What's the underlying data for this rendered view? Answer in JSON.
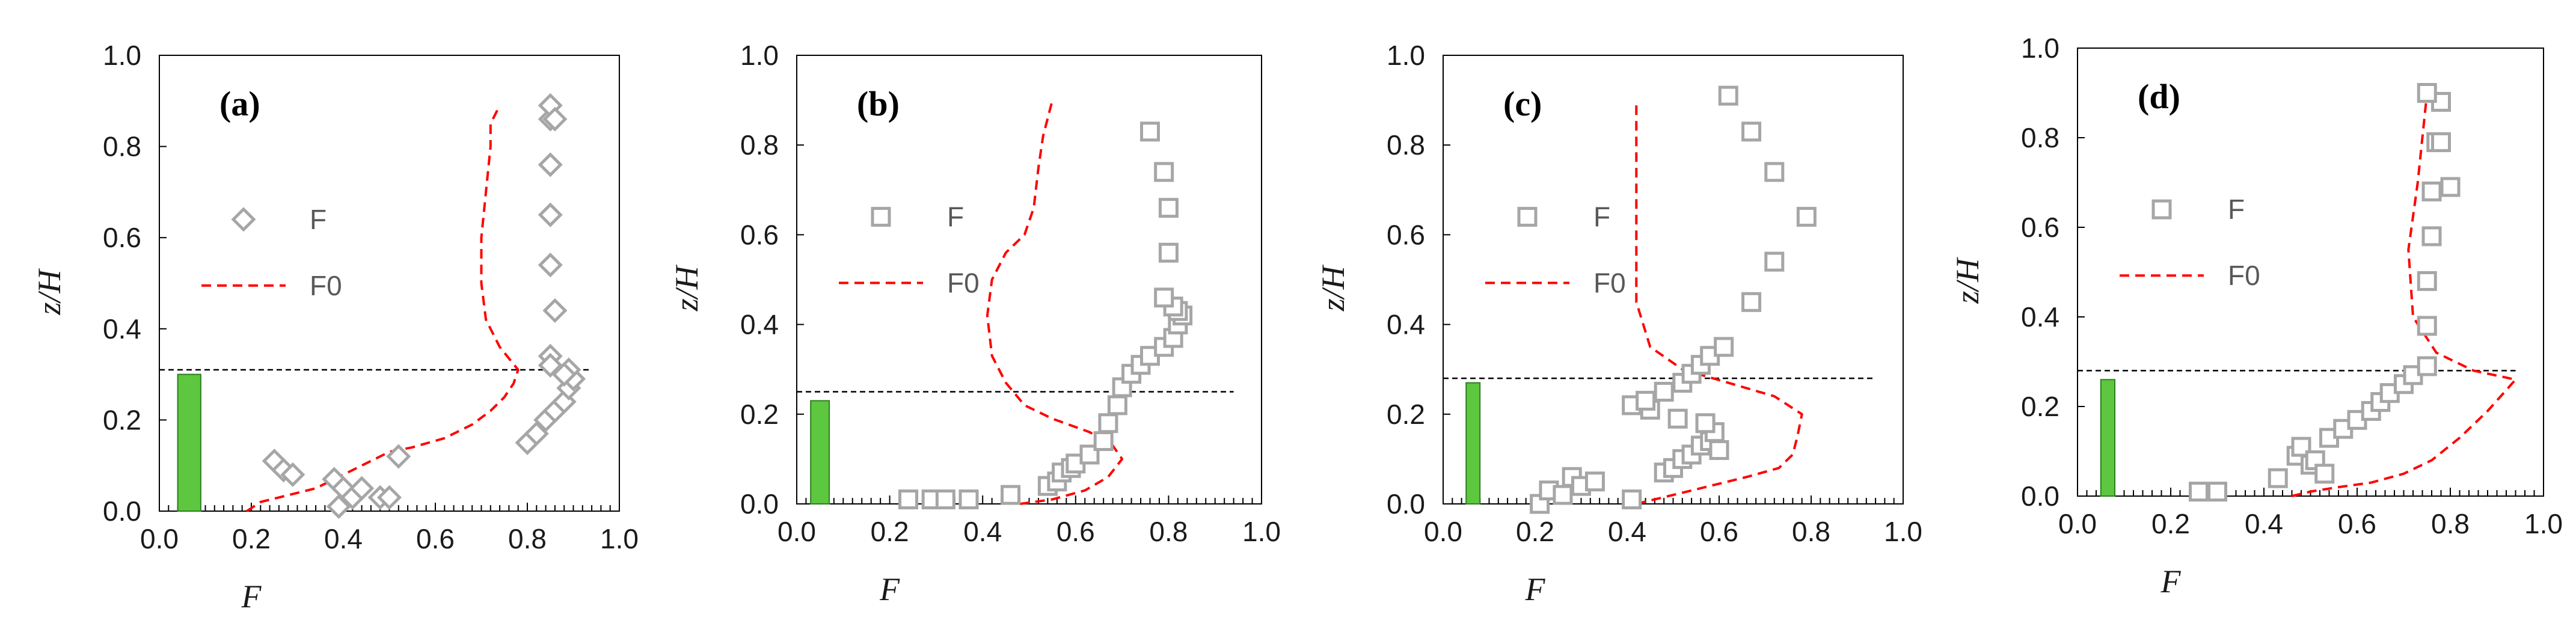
{
  "chart_data": [
    {
      "type": "scatter",
      "panel_label": "(a)",
      "xlabel": "F",
      "ylabel": "z/H",
      "xlim": [
        0,
        1
      ],
      "ylim": [
        0,
        1
      ],
      "xticks": [
        "0.0",
        "0.2",
        "0.4",
        "0.6",
        "0.8",
        "1.0"
      ],
      "yticks": [
        "0.0",
        "0.2",
        "0.4",
        "0.6",
        "0.8",
        "1.0"
      ],
      "marker": "diamond",
      "legend": {
        "scatter": "F",
        "line": "F0",
        "position": "middle-left"
      },
      "bar": {
        "x0": 0.04,
        "x1": 0.09,
        "height": 0.3
      },
      "threshold": 0.31,
      "series": [
        {
          "name": "F",
          "x": [
            0.25,
            0.27,
            0.29,
            0.38,
            0.4,
            0.39,
            0.42,
            0.44,
            0.48,
            0.5,
            0.52,
            0.8,
            0.82,
            0.84,
            0.86,
            0.88,
            0.89,
            0.9,
            0.89,
            0.88,
            0.85,
            0.86,
            0.85,
            0.85,
            0.85,
            0.85,
            0.85,
            0.86,
            0.85
          ],
          "y": [
            0.11,
            0.09,
            0.08,
            0.07,
            0.05,
            0.01,
            0.03,
            0.05,
            0.03,
            0.03,
            0.12,
            0.15,
            0.17,
            0.2,
            0.22,
            0.24,
            0.27,
            0.29,
            0.31,
            0.3,
            0.34,
            0.44,
            0.54,
            0.65,
            0.76,
            0.86,
            0.89,
            0.86,
            0.32
          ]
        },
        {
          "name": "F0",
          "x": [
            0.19,
            0.22,
            0.26,
            0.3,
            0.34,
            0.38,
            0.42,
            0.46,
            0.5,
            0.55,
            0.62,
            0.68,
            0.72,
            0.75,
            0.77,
            0.78,
            0.74,
            0.71,
            0.7,
            0.7,
            0.71,
            0.72,
            0.72,
            0.74
          ],
          "y": [
            0.0,
            0.02,
            0.03,
            0.04,
            0.05,
            0.07,
            0.09,
            0.11,
            0.13,
            0.14,
            0.16,
            0.19,
            0.22,
            0.25,
            0.28,
            0.31,
            0.36,
            0.42,
            0.5,
            0.6,
            0.7,
            0.8,
            0.85,
            0.89
          ]
        }
      ]
    },
    {
      "type": "scatter",
      "panel_label": "(b)",
      "xlabel": "F",
      "ylabel": "z/H",
      "xlim": [
        0,
        1
      ],
      "ylim": [
        0,
        1
      ],
      "xticks": [
        "0.0",
        "0.2",
        "0.4",
        "0.6",
        "0.8",
        "1.0"
      ],
      "yticks": [
        "0.0",
        "0.2",
        "0.4",
        "0.6",
        "0.8",
        "1.0"
      ],
      "marker": "square",
      "legend": {
        "scatter": "F",
        "line": "F0",
        "position": "middle-left"
      },
      "bar": {
        "x0": 0.03,
        "x1": 0.07,
        "height": 0.23
      },
      "threshold": 0.25,
      "series": [
        {
          "name": "F",
          "x": [
            0.24,
            0.29,
            0.32,
            0.37,
            0.46,
            0.54,
            0.56,
            0.57,
            0.59,
            0.6,
            0.63,
            0.66,
            0.67,
            0.69,
            0.7,
            0.72,
            0.74,
            0.76,
            0.79,
            0.81,
            0.82,
            0.83,
            0.82,
            0.81,
            0.79,
            0.8,
            0.8,
            0.79,
            0.76
          ],
          "y": [
            0.01,
            0.01,
            0.01,
            0.01,
            0.02,
            0.04,
            0.05,
            0.07,
            0.08,
            0.09,
            0.11,
            0.14,
            0.18,
            0.22,
            0.26,
            0.29,
            0.31,
            0.33,
            0.35,
            0.37,
            0.4,
            0.42,
            0.43,
            0.44,
            0.46,
            0.56,
            0.66,
            0.74,
            0.83
          ]
        },
        {
          "name": "F0",
          "x": [
            0.48,
            0.55,
            0.62,
            0.67,
            0.7,
            0.68,
            0.63,
            0.55,
            0.49,
            0.45,
            0.42,
            0.41,
            0.42,
            0.45,
            0.49,
            0.51,
            0.52,
            0.53,
            0.55
          ],
          "y": [
            0.0,
            0.01,
            0.03,
            0.06,
            0.1,
            0.13,
            0.16,
            0.19,
            0.22,
            0.27,
            0.33,
            0.42,
            0.5,
            0.56,
            0.6,
            0.66,
            0.75,
            0.82,
            0.9
          ]
        }
      ]
    },
    {
      "type": "scatter",
      "panel_label": "(c)",
      "xlabel": "F",
      "ylabel": "z/H",
      "xlim": [
        0,
        1
      ],
      "ylim": [
        0,
        1
      ],
      "xticks": [
        "0.0",
        "0.2",
        "0.4",
        "0.6",
        "0.8",
        "1.0"
      ],
      "yticks": [
        "0.0",
        "0.2",
        "0.4",
        "0.6",
        "0.8",
        "1.0"
      ],
      "marker": "square",
      "legend": {
        "scatter": "F",
        "line": "F0",
        "position": "middle-left"
      },
      "bar": {
        "x0": 0.05,
        "x1": 0.08,
        "height": 0.27
      },
      "threshold": 0.28,
      "series": [
        {
          "name": "F",
          "x": [
            0.21,
            0.23,
            0.26,
            0.28,
            0.3,
            0.33,
            0.41,
            0.48,
            0.5,
            0.52,
            0.54,
            0.56,
            0.58,
            0.59,
            0.6,
            0.57,
            0.51,
            0.45,
            0.41,
            0.44,
            0.48,
            0.52,
            0.54,
            0.56,
            0.58,
            0.61,
            0.67,
            0.72,
            0.79,
            0.72,
            0.67,
            0.62
          ],
          "y": [
            0.0,
            0.03,
            0.02,
            0.06,
            0.04,
            0.05,
            0.01,
            0.07,
            0.08,
            0.1,
            0.11,
            0.13,
            0.14,
            0.16,
            0.12,
            0.18,
            0.19,
            0.21,
            0.22,
            0.23,
            0.25,
            0.27,
            0.29,
            0.31,
            0.33,
            0.35,
            0.45,
            0.54,
            0.64,
            0.74,
            0.83,
            0.91
          ]
        },
        {
          "name": "F0",
          "x": [
            0.42,
            0.5,
            0.58,
            0.66,
            0.73,
            0.76,
            0.77,
            0.78,
            0.72,
            0.62,
            0.52,
            0.45,
            0.42,
            0.42,
            0.42,
            0.42
          ],
          "y": [
            0.0,
            0.02,
            0.04,
            0.06,
            0.08,
            0.11,
            0.15,
            0.2,
            0.24,
            0.27,
            0.3,
            0.35,
            0.45,
            0.6,
            0.75,
            0.9
          ]
        }
      ]
    },
    {
      "type": "scatter",
      "panel_label": "(d)",
      "xlabel": "F",
      "ylabel": "z/H",
      "xlim": [
        0,
        1
      ],
      "ylim": [
        0,
        1
      ],
      "xticks": [
        "0.0",
        "0.2",
        "0.4",
        "0.6",
        "0.8",
        "1.0"
      ],
      "yticks": [
        "0.0",
        "0.2",
        "0.4",
        "0.6",
        "0.8",
        "1.0"
      ],
      "marker": "square",
      "legend": {
        "scatter": "F",
        "line": "F0",
        "position": "middle-left"
      },
      "bar": {
        "x0": 0.05,
        "x1": 0.08,
        "height": 0.26
      },
      "threshold": 0.28,
      "series": [
        {
          "name": "F",
          "x": [
            0.26,
            0.3,
            0.43,
            0.47,
            0.48,
            0.5,
            0.51,
            0.53,
            0.54,
            0.57,
            0.6,
            0.63,
            0.65,
            0.67,
            0.7,
            0.72,
            0.75,
            0.75,
            0.75,
            0.76,
            0.76,
            0.77,
            0.8,
            0.78,
            0.78,
            0.75
          ],
          "y": [
            0.01,
            0.01,
            0.04,
            0.09,
            0.11,
            0.07,
            0.08,
            0.05,
            0.13,
            0.15,
            0.17,
            0.19,
            0.21,
            0.23,
            0.25,
            0.27,
            0.29,
            0.38,
            0.48,
            0.58,
            0.68,
            0.79,
            0.69,
            0.88,
            0.79,
            0.9
          ]
        },
        {
          "name": "F0",
          "x": [
            0.46,
            0.5,
            0.56,
            0.63,
            0.7,
            0.76,
            0.82,
            0.88,
            0.94,
            0.85,
            0.77,
            0.72,
            0.71,
            0.73,
            0.74,
            0.75
          ],
          "y": [
            0.0,
            0.01,
            0.02,
            0.03,
            0.05,
            0.08,
            0.13,
            0.19,
            0.26,
            0.28,
            0.32,
            0.4,
            0.55,
            0.7,
            0.8,
            0.9
          ]
        }
      ]
    }
  ],
  "colors": {
    "marker_stroke": "#A6A6A6",
    "f0_line": "#FF0000",
    "bar_fill": "#5CC73F",
    "bar_stroke": "#2E7D1E",
    "threshold_line": "#000000",
    "axis": "#000000",
    "text": "#1a1a1a"
  }
}
